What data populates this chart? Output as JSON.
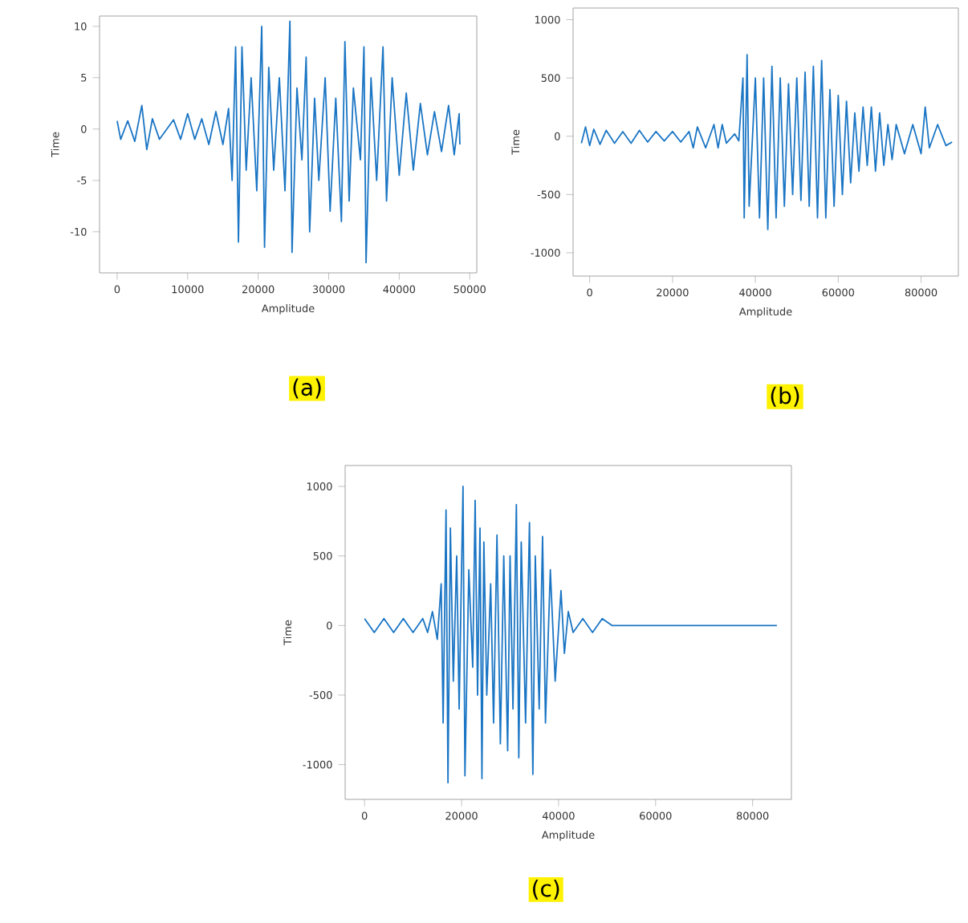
{
  "chart_data": [
    {
      "type": "line",
      "xlabel": "Amplitude",
      "ylabel": "Time",
      "color": "#1a75c4",
      "xlim": [
        -2500,
        51000
      ],
      "ylim": [
        -14,
        11
      ],
      "xticks": [
        0,
        10000,
        20000,
        30000,
        40000,
        50000
      ],
      "yticks": [
        -10,
        -5,
        0,
        5,
        10
      ],
      "annotations": [
        "(a)"
      ],
      "x": [
        0,
        500,
        1500,
        2500,
        3500,
        4200,
        5000,
        6000,
        8000,
        9000,
        10000,
        11000,
        12000,
        13000,
        14000,
        15000,
        15800,
        16300,
        16800,
        17200,
        17700,
        18300,
        19000,
        19800,
        20500,
        20900,
        21500,
        22200,
        23000,
        23800,
        24500,
        24800,
        25500,
        26200,
        26800,
        27300,
        28000,
        28600,
        29500,
        30200,
        31000,
        31800,
        32300,
        32900,
        33500,
        34500,
        35000,
        35300,
        36000,
        36800,
        37700,
        38200,
        39000,
        40000,
        41000,
        42000,
        43000,
        44000,
        45000,
        46000,
        47000,
        47800,
        48500,
        48600
      ],
      "values": [
        0.8,
        -1,
        0.8,
        -1.2,
        2.3,
        -2,
        1,
        -1,
        0.9,
        -1,
        1.5,
        -1,
        1,
        -1.5,
        1.7,
        -1.5,
        2,
        -5,
        8,
        -11,
        8,
        -4,
        5,
        -6,
        10,
        -11.5,
        6,
        -4,
        5,
        -6,
        10.5,
        -12,
        4,
        -3,
        7,
        -10,
        3,
        -5,
        5,
        -8,
        3,
        -9,
        8.5,
        -7,
        4,
        -3,
        8,
        -13,
        5,
        -5,
        8,
        -7,
        5,
        -4.5,
        3.5,
        -4,
        2.5,
        -2.5,
        1.7,
        -2.2,
        2.3,
        -2.5,
        1.5,
        -1.5
      ]
    },
    {
      "type": "line",
      "xlabel": "Amplitude",
      "ylabel": "Time",
      "color": "#1a75c4",
      "xlim": [
        -4000,
        89000
      ],
      "ylim": [
        -1200,
        1100
      ],
      "xticks": [
        0,
        20000,
        40000,
        60000,
        80000
      ],
      "yticks": [
        -1000,
        -500,
        0,
        500,
        1000
      ],
      "annotations": [
        "(b)"
      ],
      "x": [
        -2000,
        -1000,
        0,
        1000,
        2500,
        4000,
        6000,
        8000,
        10000,
        12000,
        14000,
        16000,
        18000,
        20000,
        22000,
        24000,
        25000,
        26000,
        28000,
        30000,
        31000,
        32000,
        33000,
        35000,
        36000,
        37000,
        37300,
        38000,
        38500,
        40000,
        41000,
        42000,
        43000,
        44000,
        45000,
        46000,
        47000,
        48000,
        49000,
        50000,
        51000,
        52000,
        53000,
        54000,
        55000,
        56000,
        57000,
        58000,
        59000,
        60000,
        61000,
        62000,
        63000,
        64000,
        65000,
        66000,
        67000,
        68000,
        69000,
        70000,
        71000,
        72000,
        73000,
        74000,
        76000,
        78000,
        80000,
        81000,
        82000,
        84000,
        86000,
        87500
      ],
      "values": [
        -60,
        80,
        -80,
        60,
        -70,
        50,
        -60,
        40,
        -60,
        50,
        -50,
        40,
        -40,
        40,
        -50,
        40,
        -100,
        80,
        -100,
        100,
        -100,
        100,
        -60,
        20,
        -40,
        500,
        -700,
        700,
        -600,
        500,
        -700,
        500,
        -800,
        600,
        -700,
        500,
        -600,
        450,
        -500,
        500,
        -550,
        550,
        -600,
        600,
        -700,
        650,
        -700,
        400,
        -600,
        350,
        -500,
        300,
        -400,
        200,
        -300,
        250,
        -250,
        250,
        -300,
        200,
        -250,
        100,
        -200,
        100,
        -150,
        100,
        -150,
        250,
        -100,
        100,
        -80,
        -50
      ]
    },
    {
      "type": "line",
      "xlabel": "Amplitude",
      "ylabel": "Time",
      "color": "#1a75c4",
      "xlim": [
        -4000,
        88000
      ],
      "ylim": [
        -1250,
        1150
      ],
      "xticks": [
        0,
        20000,
        40000,
        60000,
        80000
      ],
      "yticks": [
        -1000,
        -500,
        0,
        500,
        1000
      ],
      "annotations": [
        "(c)"
      ],
      "x": [
        0,
        2000,
        4000,
        6000,
        8000,
        10000,
        12000,
        13000,
        14000,
        15000,
        15800,
        16200,
        16800,
        17200,
        17700,
        18300,
        19000,
        19500,
        20300,
        20700,
        21500,
        22300,
        22800,
        23300,
        23800,
        24200,
        24600,
        25200,
        26000,
        26600,
        27300,
        28000,
        28700,
        29500,
        30000,
        30600,
        31300,
        31800,
        32300,
        33200,
        34000,
        34700,
        35200,
        36000,
        36700,
        37300,
        38300,
        39300,
        40500,
        41200,
        42000,
        43000,
        45000,
        47000,
        49000,
        51000,
        55000,
        60000,
        65000,
        70000,
        75000,
        80000,
        85000
      ],
      "values": [
        50,
        -50,
        50,
        -50,
        50,
        -50,
        50,
        -50,
        100,
        -100,
        300,
        -700,
        830,
        -1130,
        700,
        -400,
        500,
        -600,
        1000,
        -1080,
        400,
        -300,
        900,
        -500,
        700,
        -1100,
        600,
        -500,
        300,
        -700,
        650,
        -850,
        500,
        -900,
        500,
        -600,
        870,
        -950,
        600,
        -700,
        740,
        -1070,
        500,
        -600,
        640,
        -700,
        400,
        -400,
        250,
        -200,
        100,
        -50,
        50,
        -50,
        50,
        0,
        0,
        0,
        0,
        0,
        0,
        0,
        0
      ]
    }
  ]
}
